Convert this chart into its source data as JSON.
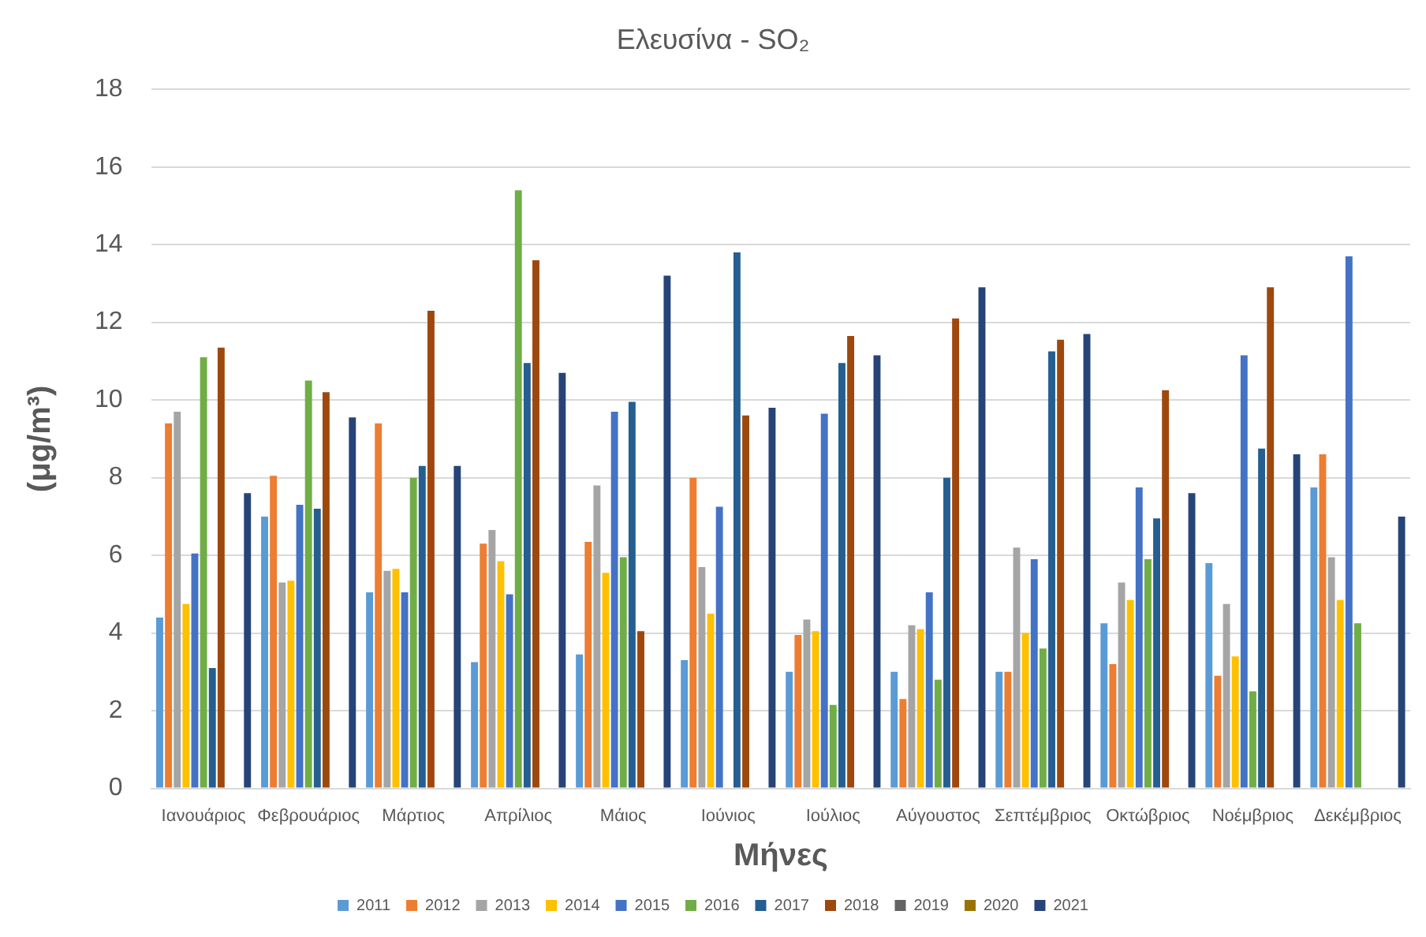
{
  "chart_data": {
    "type": "bar",
    "title": "Ελευσίνα - SO₂",
    "xlabel": "Μήνες",
    "ylabel": "(μg/m³)",
    "categories": [
      "Ιανουάριος",
      "Φεβρουάριος",
      "Μάρτιος",
      "Απρίλιος",
      "Μάιος",
      "Ιούνιος",
      "Ιούλιος",
      "Αύγουστος",
      "Σεπτέμβριος",
      "Οκτώβριος",
      "Νοέμβριος",
      "Δεκέμβριος"
    ],
    "ylim": [
      0,
      18
    ],
    "yticks": [
      0,
      2,
      4,
      6,
      8,
      10,
      12,
      14,
      16,
      18
    ],
    "grid": "y",
    "legend": "bottom",
    "series": [
      {
        "name": "2011",
        "color": "#5b9bd5",
        "values": [
          4.4,
          7.0,
          5.05,
          3.25,
          3.45,
          3.3,
          3.0,
          3.0,
          3.0,
          4.25,
          5.8,
          7.75
        ]
      },
      {
        "name": "2012",
        "color": "#ed7d31",
        "values": [
          9.4,
          8.05,
          9.4,
          6.3,
          6.35,
          8.0,
          3.95,
          2.3,
          3.0,
          3.2,
          2.9,
          8.6
        ]
      },
      {
        "name": "2013",
        "color": "#a5a5a5",
        "values": [
          9.7,
          5.3,
          5.6,
          6.65,
          7.8,
          5.7,
          4.35,
          4.2,
          6.2,
          5.3,
          4.75,
          5.95
        ]
      },
      {
        "name": "2014",
        "color": "#ffc000",
        "values": [
          4.75,
          5.35,
          5.65,
          5.85,
          5.55,
          4.5,
          4.05,
          4.1,
          4.0,
          4.85,
          3.4,
          4.85
        ]
      },
      {
        "name": "2015",
        "color": "#4472c4",
        "values": [
          6.05,
          7.3,
          5.05,
          5.0,
          9.7,
          7.25,
          9.65,
          5.05,
          5.9,
          7.75,
          11.15,
          13.7
        ]
      },
      {
        "name": "2016",
        "color": "#70ad47",
        "values": [
          11.1,
          10.5,
          8.0,
          15.4,
          5.95,
          null,
          2.15,
          2.8,
          3.6,
          5.9,
          2.5,
          4.25
        ]
      },
      {
        "name": "2017",
        "color": "#255e91",
        "values": [
          3.1,
          7.2,
          8.3,
          10.95,
          9.95,
          13.8,
          10.95,
          8.0,
          11.25,
          6.95,
          8.75,
          null
        ]
      },
      {
        "name": "2018",
        "color": "#9e480e",
        "values": [
          11.35,
          10.2,
          12.3,
          13.6,
          4.05,
          9.6,
          11.65,
          12.1,
          11.55,
          10.25,
          12.9,
          null
        ]
      },
      {
        "name": "2019",
        "color": "#636363",
        "values": [
          null,
          null,
          null,
          null,
          null,
          null,
          null,
          null,
          null,
          null,
          null,
          null
        ]
      },
      {
        "name": "2020",
        "color": "#997300",
        "values": [
          null,
          null,
          null,
          null,
          null,
          null,
          null,
          null,
          null,
          null,
          null,
          null
        ]
      },
      {
        "name": "2021",
        "color": "#264478",
        "values": [
          7.6,
          9.55,
          8.3,
          10.7,
          13.2,
          9.8,
          11.15,
          12.9,
          11.7,
          7.6,
          8.6,
          7.0
        ]
      }
    ]
  }
}
